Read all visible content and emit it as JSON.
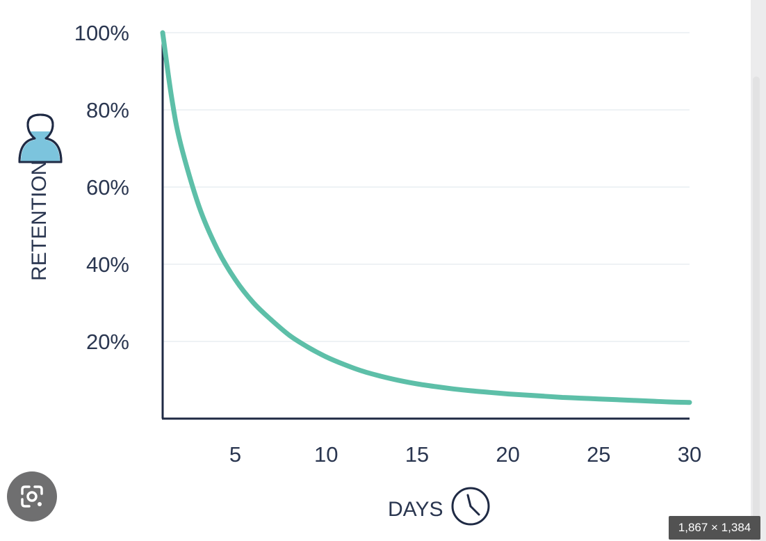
{
  "chart_data": {
    "type": "line",
    "title": "",
    "xlabel": "DAYS",
    "ylabel": "RETENTION",
    "xlim": [
      1,
      30
    ],
    "ylim": [
      0,
      100
    ],
    "x_ticks": [
      "5",
      "10",
      "15",
      "20",
      "25",
      "30"
    ],
    "y_ticks": [
      "100%",
      "80%",
      "60%",
      "40%",
      "20%"
    ],
    "grid": true,
    "series": [
      {
        "x": [
          1,
          1.5,
          2,
          3,
          4,
          5,
          6,
          7,
          8,
          9,
          10,
          11,
          12,
          13,
          14,
          15,
          16,
          17,
          18,
          19,
          20,
          21,
          22,
          23,
          24,
          25,
          26,
          27,
          28,
          29,
          30
        ],
        "y": [
          100,
          83,
          71,
          55,
          44,
          36,
          30,
          25.5,
          21.5,
          18.5,
          16,
          14,
          12.3,
          11,
          9.9,
          9,
          8.3,
          7.7,
          7.2,
          6.8,
          6.4,
          6.1,
          5.8,
          5.5,
          5.3,
          5.1,
          4.9,
          4.7,
          4.5,
          4.3,
          4.2
        ]
      }
    ],
    "colors": {
      "line": "#5dbfa8",
      "axis": "#1f2a44",
      "icon_fill": "#7cc4dd"
    },
    "icons": [
      "person-retention-icon",
      "clock-icon"
    ]
  },
  "overlay": {
    "dimensions": "1,867 × 1,384",
    "lens_icon": "google-lens-icon"
  }
}
